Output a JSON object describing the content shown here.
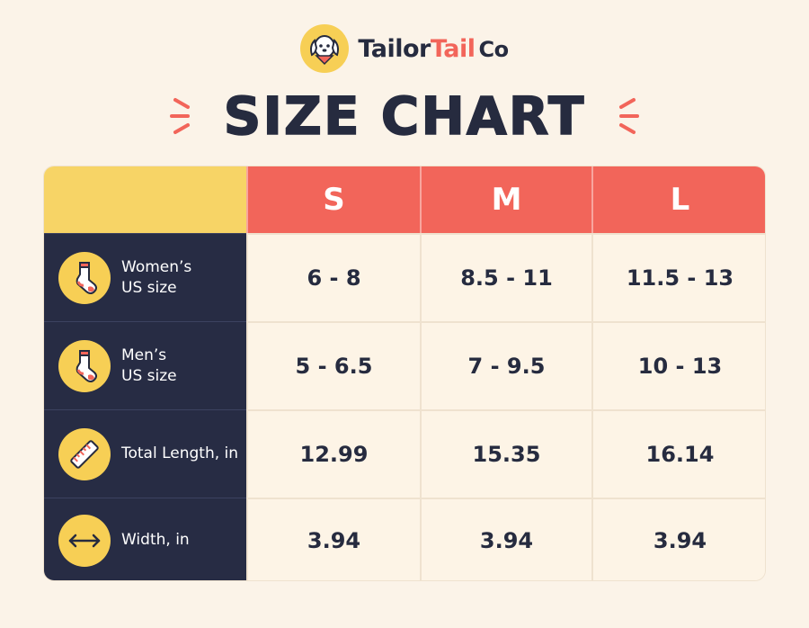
{
  "brand": {
    "part1": "Tailor",
    "part2": "Tail",
    "part3": "Co"
  },
  "title": "SIZE CHART",
  "colors": {
    "background": "#fbf3e8",
    "header_red": "#f2655a",
    "accent_yellow": "#f7cf55",
    "navy": "#272c44"
  },
  "sizes": [
    "S",
    "M",
    "L"
  ],
  "rows": [
    {
      "icon": "sock-icon",
      "label": "Women’s\nUS size",
      "values": [
        "6 - 8",
        "8.5 - 11",
        "11.5 - 13"
      ]
    },
    {
      "icon": "sock-icon",
      "label": "Men’s\nUS size",
      "values": [
        "5 - 6.5",
        "7 - 9.5",
        "10 - 13"
      ]
    },
    {
      "icon": "ruler-icon",
      "label": "Total Length, in",
      "values": [
        "12.99",
        "15.35",
        "16.14"
      ]
    },
    {
      "icon": "double-arrow-icon",
      "label": "Width, in",
      "values": [
        "3.94",
        "3.94",
        "3.94"
      ]
    }
  ]
}
